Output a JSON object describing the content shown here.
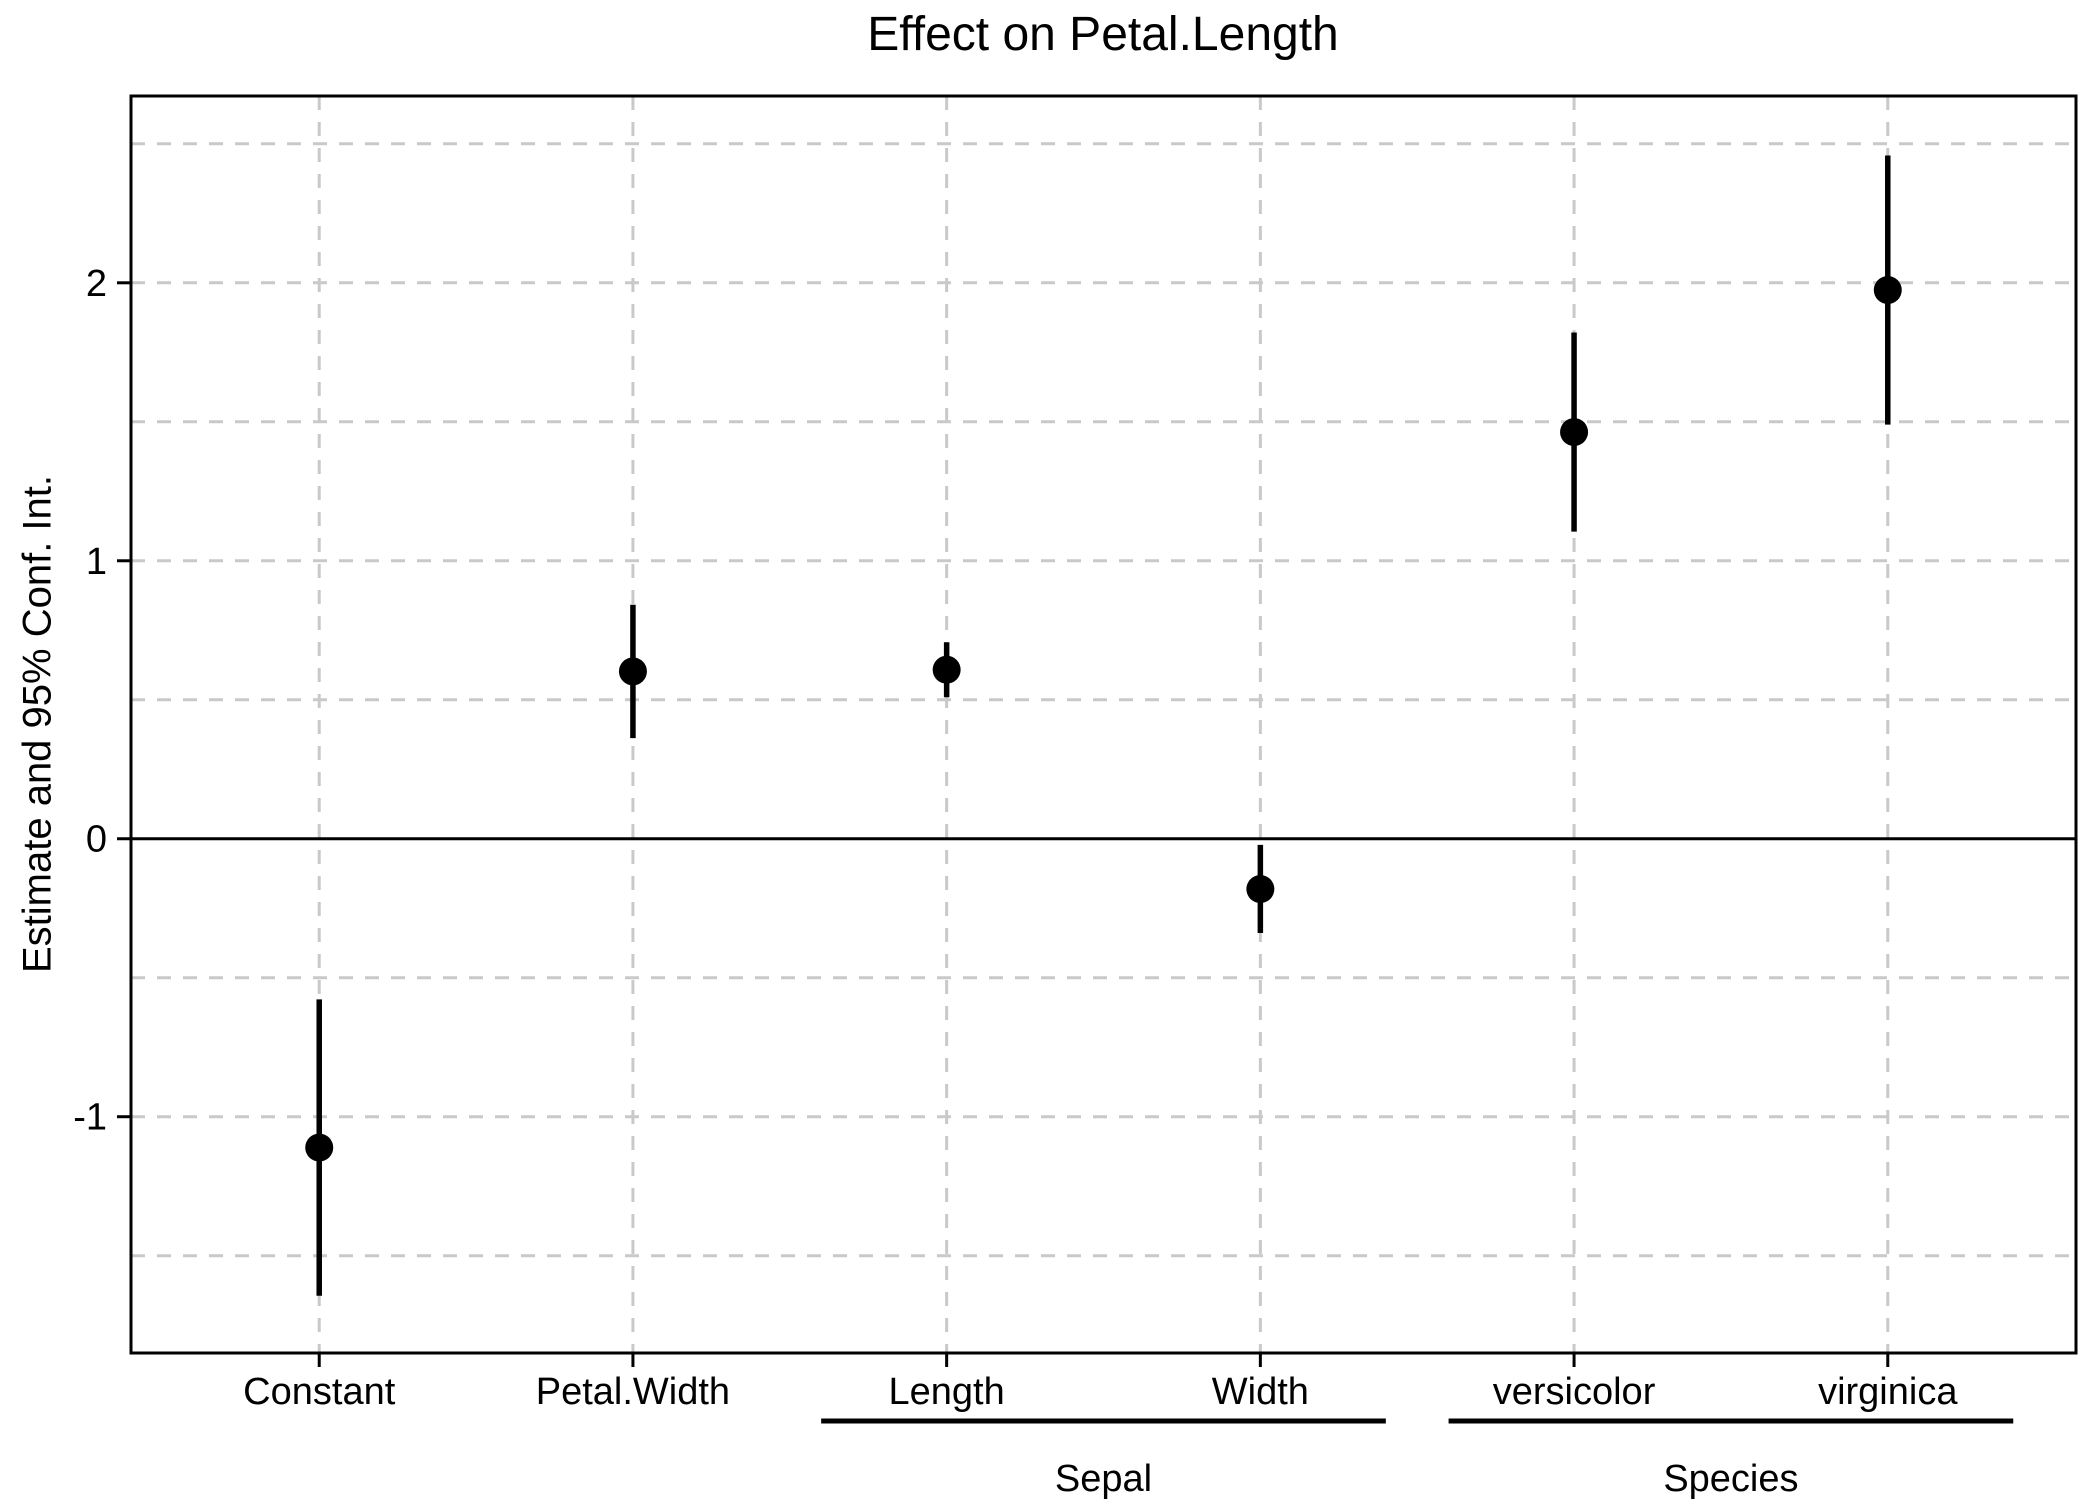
{
  "chart_data": {
    "type": "pointrange",
    "title": "Effect on Petal.Length",
    "ylabel": "Estimate and 95% Conf. Int.",
    "categories": [
      "Constant",
      "Petal.Width",
      "Length",
      "Width",
      "versicolor",
      "virginica"
    ],
    "points": [
      {
        "term": "Constant",
        "group": null,
        "estimate": -1.111,
        "ci_low": -1.644,
        "ci_high": -0.578
      },
      {
        "term": "Petal.Width",
        "group": null,
        "estimate": 0.602,
        "ci_low": 0.362,
        "ci_high": 0.842
      },
      {
        "term": "Length",
        "group": "Sepal",
        "estimate": 0.608,
        "ci_low": 0.509,
        "ci_high": 0.707
      },
      {
        "term": "Width",
        "group": "Sepal",
        "estimate": -0.181,
        "ci_low": -0.339,
        "ci_high": -0.022
      },
      {
        "term": "versicolor",
        "group": "Species",
        "estimate": 1.463,
        "ci_low": 1.105,
        "ci_high": 1.821
      },
      {
        "term": "virginica",
        "group": "Species",
        "estimate": 1.974,
        "ci_low": 1.49,
        "ci_high": 2.458
      }
    ],
    "groups": [
      {
        "label": "Sepal",
        "start": "Length",
        "end": "Width"
      },
      {
        "label": "Species",
        "start": "versicolor",
        "end": "virginica"
      }
    ],
    "ylim": [
      -1.85,
      2.672
    ],
    "y_ticks": [
      2,
      1,
      0,
      -1
    ],
    "y_minor_gridlines": [
      2.5,
      1.5,
      0.5,
      -0.5,
      -1.5
    ],
    "zero_line": 0,
    "grid_style": "dashed",
    "legend": "none",
    "colors": {
      "point": "#000000",
      "error_bar": "#000000",
      "gridline": "#c9c9c9",
      "panel_border": "#000000",
      "zero_line": "#000000",
      "axis_text": "#000000",
      "background": "#ffffff"
    }
  }
}
